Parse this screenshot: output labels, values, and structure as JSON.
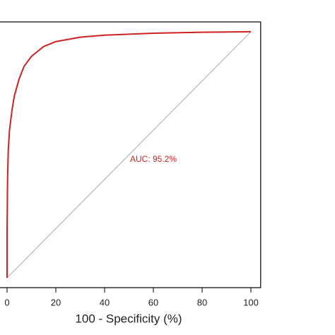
{
  "chart_data": {
    "type": "line",
    "x_label": "100 -  Specificity (%)",
    "annotation": "AUC: 95.2%",
    "xlim": [
      -4,
      104
    ],
    "ylim": [
      -4,
      104
    ],
    "xticks": [
      0,
      20,
      40,
      60,
      80,
      100
    ],
    "x": [
      0,
      0,
      0.2,
      0.5,
      1,
      2,
      3,
      5,
      7,
      10,
      15,
      20,
      30,
      40,
      60,
      80,
      100
    ],
    "series": [
      {
        "color": "#cc2222",
        "values": [
          0,
          20,
          40,
          52,
          60,
          68,
          74,
          81,
          86,
          90,
          94,
          96,
          97.8,
          98.6,
          99.4,
          99.8,
          100
        ]
      }
    ],
    "reference": {
      "x": [
        0,
        100
      ],
      "y": [
        0,
        100
      ],
      "color": "#aaaaaa"
    }
  }
}
